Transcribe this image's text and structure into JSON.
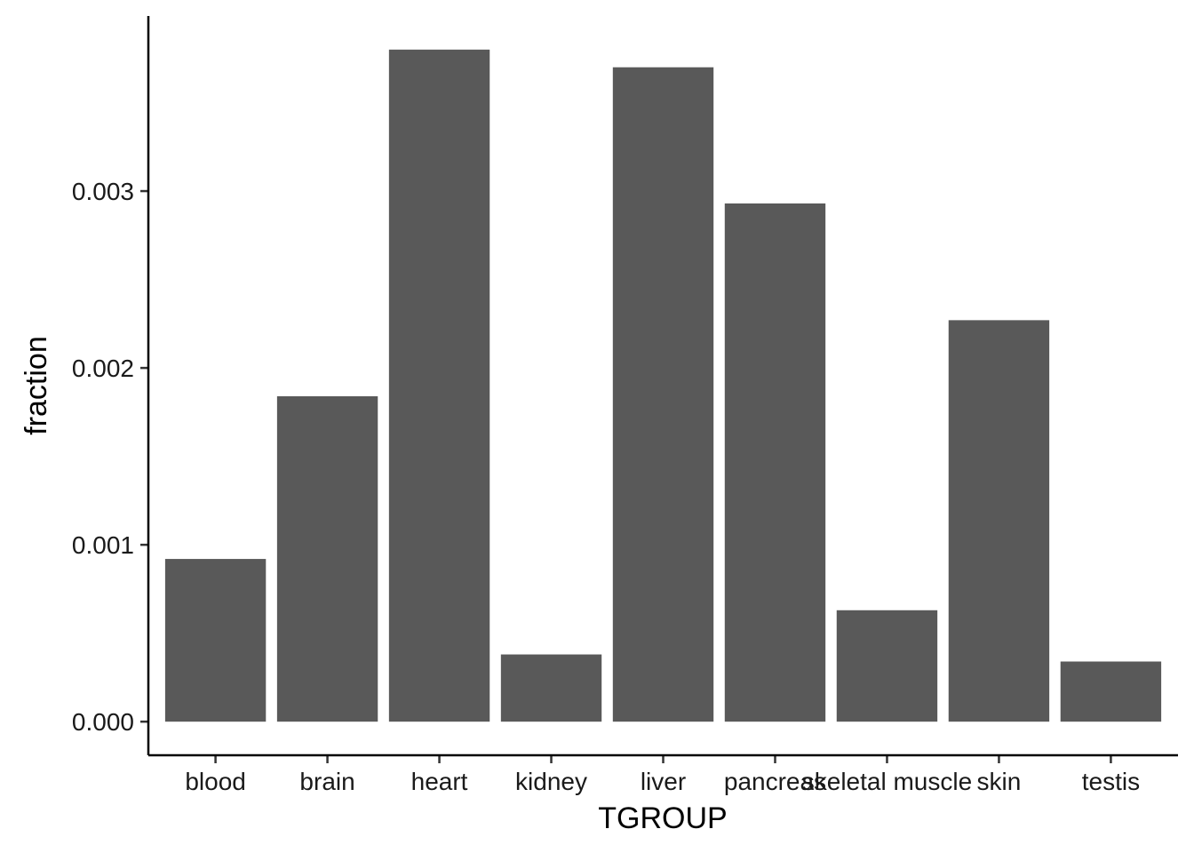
{
  "chart_data": {
    "type": "bar",
    "title": "",
    "xlabel": "TGROUP",
    "ylabel": "fraction",
    "categories": [
      "blood",
      "brain",
      "heart",
      "kidney",
      "liver",
      "pancreas",
      "skeletal muscle",
      "skin",
      "testis"
    ],
    "values": [
      0.00092,
      0.00184,
      0.0038,
      0.00038,
      0.0037,
      0.00293,
      0.00063,
      0.00227,
      0.00034
    ],
    "y_ticks": [
      0,
      0.001,
      0.002,
      0.003
    ],
    "y_tick_labels": [
      "0.000",
      "0.001",
      "0.002",
      "0.003"
    ],
    "ylim": [
      -0.00019,
      0.00399
    ],
    "grid": false,
    "legend": "none",
    "bar_color": "#595959"
  }
}
